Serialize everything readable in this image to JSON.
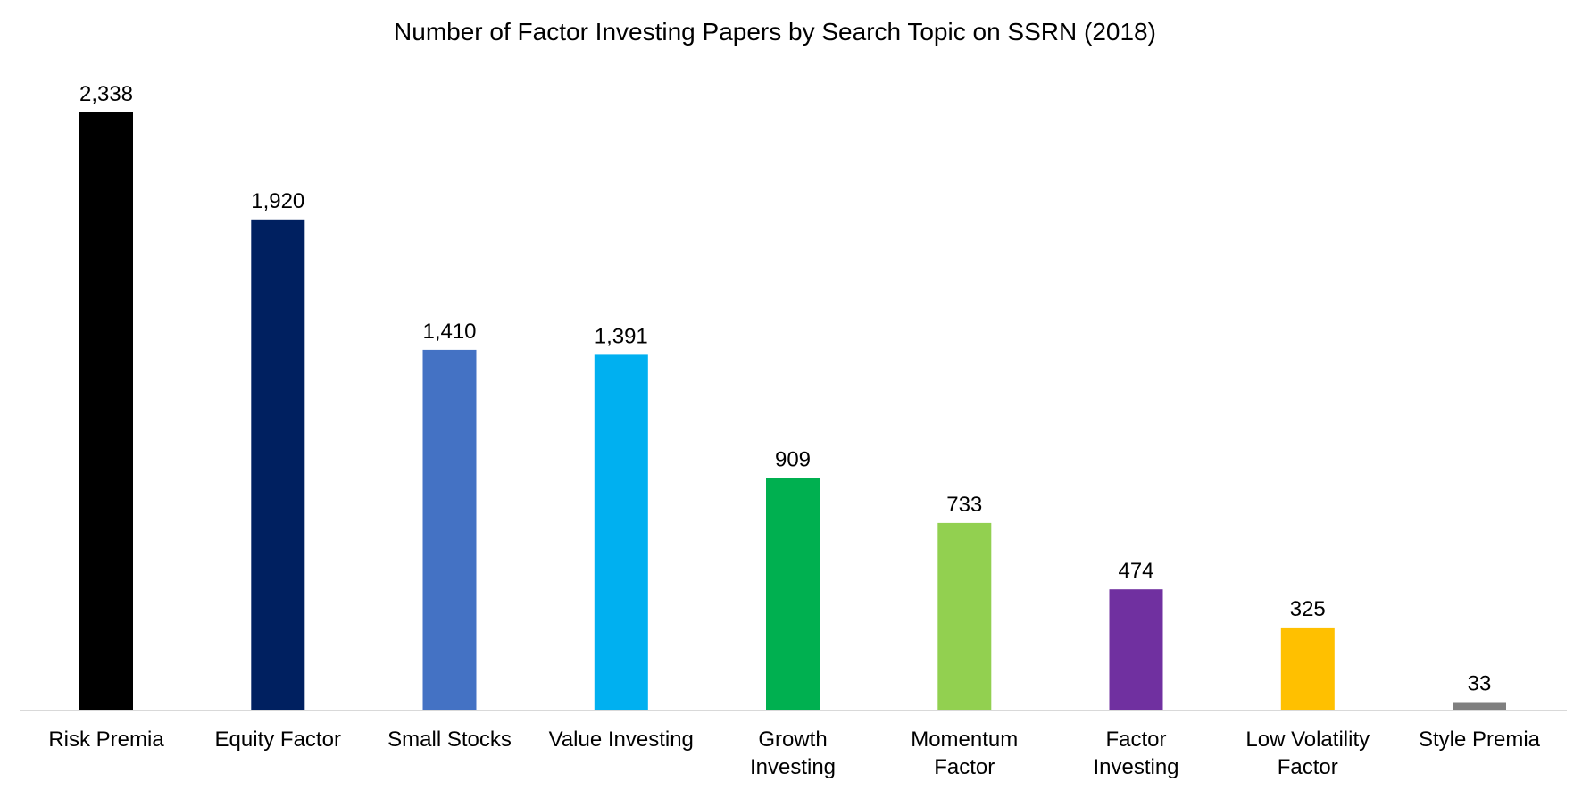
{
  "chart_data": {
    "type": "bar",
    "title": "Number of Factor Investing Papers by Search Topic on SSRN (2018)",
    "xlabel": "",
    "ylabel": "",
    "ylim": [
      0,
      2338
    ],
    "grid": false,
    "legend": "none",
    "categories": [
      "Risk Premia",
      "Equity Factor",
      "Small Stocks",
      "Value Investing",
      "Growth Investing",
      "Momentum Factor",
      "Factor Investing",
      "Low Volatility Factor",
      "Style Premia"
    ],
    "category_lines": [
      [
        "Risk Premia"
      ],
      [
        "Equity Factor"
      ],
      [
        "Small Stocks"
      ],
      [
        "Value Investing"
      ],
      [
        "Growth",
        "Investing"
      ],
      [
        "Momentum",
        "Factor"
      ],
      [
        "Factor",
        "Investing"
      ],
      [
        "Low Volatility",
        "Factor"
      ],
      [
        "Style Premia"
      ]
    ],
    "values": [
      2338,
      1920,
      1410,
      1391,
      909,
      733,
      474,
      325,
      33
    ],
    "value_labels": [
      "2,338",
      "1,920",
      "1,410",
      "1,391",
      "909",
      "733",
      "474",
      "325",
      "33"
    ],
    "colors": [
      "#000000",
      "#002060",
      "#4472C4",
      "#00B0F0",
      "#00B050",
      "#92D050",
      "#7030A0",
      "#FFC000",
      "#7F7F7F"
    ],
    "axis_color": "#D9D9D9"
  }
}
